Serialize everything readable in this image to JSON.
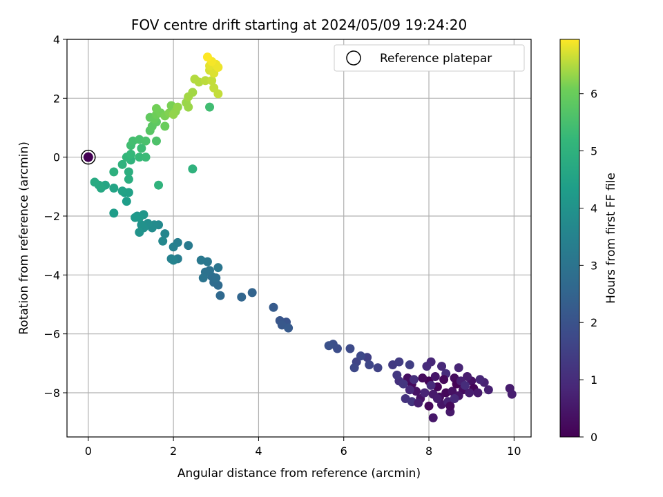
{
  "chart_data": {
    "type": "scatter",
    "title": "FOV centre drift starting at 2024/05/09 19:24:20",
    "xlabel": "Angular distance from reference (arcmin)",
    "ylabel": "Rotation from reference (arcmin)",
    "xlim": [
      -0.5,
      10.4
    ],
    "ylim": [
      -9.5,
      4.0
    ],
    "xticks": [
      0,
      2,
      4,
      6,
      8,
      10
    ],
    "yticks": [
      -8,
      -6,
      -4,
      -2,
      0,
      2,
      4
    ],
    "grid": true,
    "legend": {
      "position": "top-right",
      "entries": [
        "Reference platepar"
      ]
    },
    "colorbar": {
      "label": "Hours from first FF file",
      "range": [
        0,
        6.95
      ],
      "ticks": [
        0,
        1,
        2,
        3,
        4,
        5,
        6
      ],
      "colormap": "viridis"
    },
    "reference_point": {
      "x": 0,
      "y": 0
    },
    "points": [
      [
        8.0,
        -7.6,
        0.05
      ],
      [
        8.2,
        -7.8,
        0.1
      ],
      [
        8.4,
        -8.0,
        0.15
      ],
      [
        7.6,
        -7.7,
        0.2
      ],
      [
        8.6,
        -7.5,
        0.25
      ],
      [
        8.8,
        -7.9,
        0.3
      ],
      [
        9.0,
        -7.6,
        0.35
      ],
      [
        7.8,
        -8.2,
        0.4
      ],
      [
        8.3,
        -8.4,
        0.45
      ],
      [
        8.1,
        -8.85,
        0.5
      ],
      [
        8.5,
        -8.65,
        0.55
      ],
      [
        9.9,
        -7.85,
        0.6
      ],
      [
        9.95,
        -8.05,
        0.65
      ],
      [
        9.4,
        -7.9,
        0.7
      ],
      [
        9.3,
        -7.65,
        0.75
      ],
      [
        8.7,
        -7.15,
        0.8
      ],
      [
        8.05,
        -6.95,
        0.85
      ],
      [
        8.3,
        -7.1,
        0.9
      ],
      [
        7.95,
        -7.1,
        0.95
      ],
      [
        8.4,
        -7.35,
        1.0
      ],
      [
        7.5,
        -7.5,
        0.3
      ],
      [
        7.7,
        -7.95,
        0.4
      ],
      [
        7.3,
        -7.6,
        1.1
      ],
      [
        7.45,
        -8.2,
        1.15
      ],
      [
        7.6,
        -8.3,
        1.2
      ],
      [
        7.85,
        -7.5,
        0.2
      ],
      [
        8.15,
        -7.45,
        0.5
      ],
      [
        8.25,
        -8.15,
        0.25
      ],
      [
        8.55,
        -7.95,
        0.35
      ],
      [
        8.7,
        -8.1,
        0.45
      ],
      [
        8.9,
        -7.45,
        0.6
      ],
      [
        9.05,
        -7.85,
        0.1
      ],
      [
        9.15,
        -8.0,
        0.55
      ],
      [
        8.95,
        -8.0,
        0.65
      ],
      [
        8.45,
        -8.3,
        0.75
      ],
      [
        8.0,
        -8.45,
        0.15
      ],
      [
        7.9,
        -8.0,
        0.8
      ],
      [
        7.55,
        -7.9,
        0.9
      ],
      [
        7.4,
        -7.7,
        1.25
      ],
      [
        7.25,
        -7.4,
        1.3
      ],
      [
        7.15,
        -7.05,
        1.35
      ],
      [
        7.3,
        -6.95,
        1.4
      ],
      [
        7.55,
        -7.05,
        1.45
      ],
      [
        8.65,
        -7.7,
        0.05
      ],
      [
        8.35,
        -7.55,
        0.15
      ],
      [
        8.1,
        -8.05,
        0.55
      ],
      [
        8.75,
        -7.6,
        0.7
      ],
      [
        9.2,
        -7.55,
        0.85
      ],
      [
        8.05,
        -7.75,
        0.95
      ],
      [
        7.65,
        -7.55,
        1.05
      ],
      [
        8.5,
        -8.45,
        0.2
      ],
      [
        8.2,
        -8.2,
        0.6
      ],
      [
        7.75,
        -8.35,
        0.65
      ],
      [
        8.6,
        -8.2,
        0.9
      ],
      [
        8.85,
        -7.75,
        1.0
      ],
      [
        6.55,
        -6.8,
        1.5
      ],
      [
        6.8,
        -7.15,
        1.55
      ],
      [
        6.3,
        -6.95,
        1.6
      ],
      [
        6.6,
        -7.05,
        1.65
      ],
      [
        6.25,
        -7.15,
        1.7
      ],
      [
        6.4,
        -6.75,
        1.75
      ],
      [
        6.15,
        -6.5,
        1.8
      ],
      [
        5.85,
        -6.5,
        1.85
      ],
      [
        5.75,
        -6.35,
        1.9
      ],
      [
        5.65,
        -6.4,
        1.95
      ],
      [
        4.65,
        -5.6,
        2.05
      ],
      [
        4.5,
        -5.55,
        2.1
      ],
      [
        4.55,
        -5.7,
        2.15
      ],
      [
        4.7,
        -5.8,
        2.2
      ],
      [
        4.35,
        -5.1,
        2.25
      ],
      [
        3.85,
        -4.6,
        2.5
      ],
      [
        3.6,
        -4.75,
        2.55
      ],
      [
        3.1,
        -4.7,
        2.65
      ],
      [
        3.05,
        -4.35,
        2.7
      ],
      [
        2.95,
        -4.25,
        2.75
      ],
      [
        2.9,
        -4.05,
        2.8
      ],
      [
        3.0,
        -4.1,
        2.85
      ],
      [
        2.85,
        -3.85,
        2.9
      ],
      [
        2.75,
        -3.9,
        2.95
      ],
      [
        2.7,
        -4.1,
        3.0
      ],
      [
        3.05,
        -3.75,
        3.05
      ],
      [
        2.8,
        -3.55,
        3.1
      ],
      [
        2.65,
        -3.5,
        3.15
      ],
      [
        2.35,
        -3.0,
        3.2
      ],
      [
        2.1,
        -3.45,
        3.3
      ],
      [
        2.1,
        -2.9,
        3.35
      ],
      [
        2.0,
        -3.05,
        3.4
      ],
      [
        1.95,
        -3.45,
        3.45
      ],
      [
        2.0,
        -3.5,
        3.5
      ],
      [
        1.8,
        -2.6,
        3.6
      ],
      [
        1.75,
        -2.85,
        3.65
      ],
      [
        1.65,
        -2.3,
        3.7
      ],
      [
        1.55,
        -2.3,
        3.75
      ],
      [
        1.5,
        -2.4,
        3.8
      ],
      [
        1.4,
        -2.25,
        3.85
      ],
      [
        1.3,
        -2.4,
        3.9
      ],
      [
        1.25,
        -2.3,
        3.95
      ],
      [
        1.2,
        -2.55,
        4.0
      ],
      [
        1.15,
        -2.0,
        4.05
      ],
      [
        1.3,
        -1.95,
        4.1
      ],
      [
        1.2,
        -2.05,
        4.15
      ],
      [
        1.1,
        -2.05,
        4.2
      ],
      [
        0.6,
        -1.9,
        4.3
      ],
      [
        0.9,
        -1.5,
        4.35
      ],
      [
        0.85,
        -1.2,
        4.4
      ],
      [
        0.95,
        -1.2,
        4.45
      ],
      [
        0.8,
        -1.15,
        4.5
      ],
      [
        0.6,
        -1.05,
        4.55
      ],
      [
        0.4,
        -0.95,
        4.6
      ],
      [
        0.3,
        -1.05,
        4.65
      ],
      [
        0.25,
        -0.95,
        4.7
      ],
      [
        0.15,
        -0.85,
        4.75
      ],
      [
        2.45,
        -0.4,
        5.0
      ],
      [
        1.65,
        -0.95,
        5.05
      ],
      [
        0.95,
        -0.75,
        4.85
      ],
      [
        0.95,
        -0.5,
        4.9
      ],
      [
        0.6,
        -0.5,
        4.95
      ],
      [
        0.8,
        -0.25,
        5.0
      ],
      [
        1.0,
        -0.1,
        5.05
      ],
      [
        0.9,
        0.0,
        5.15
      ],
      [
        1.0,
        0.1,
        5.2
      ],
      [
        1.2,
        0.0,
        5.25
      ],
      [
        1.35,
        0.0,
        5.3
      ],
      [
        1.25,
        0.3,
        5.35
      ],
      [
        1.0,
        0.4,
        5.4
      ],
      [
        1.05,
        0.55,
        5.45
      ],
      [
        1.2,
        0.6,
        5.5
      ],
      [
        1.35,
        0.55,
        5.55
      ],
      [
        1.6,
        0.55,
        5.6
      ],
      [
        2.85,
        1.7,
        5.4
      ],
      [
        1.45,
        0.9,
        5.75
      ],
      [
        1.5,
        1.05,
        5.8
      ],
      [
        1.6,
        1.2,
        5.85
      ],
      [
        1.45,
        1.35,
        5.9
      ],
      [
        1.55,
        1.3,
        5.95
      ],
      [
        1.8,
        1.05,
        6.0
      ],
      [
        1.6,
        1.45,
        6.05
      ],
      [
        1.7,
        1.5,
        6.1
      ],
      [
        1.6,
        1.65,
        6.1
      ],
      [
        1.8,
        1.4,
        6.15
      ],
      [
        1.9,
        1.5,
        6.2
      ],
      [
        1.95,
        1.75,
        6.15
      ],
      [
        2.05,
        1.55,
        6.25
      ],
      [
        2.1,
        1.7,
        6.3
      ],
      [
        2.0,
        1.45,
        6.3
      ],
      [
        2.3,
        1.85,
        6.35
      ],
      [
        2.35,
        1.7,
        6.35
      ],
      [
        2.45,
        2.2,
        6.4
      ],
      [
        2.35,
        2.05,
        6.4
      ],
      [
        2.6,
        2.55,
        6.5
      ],
      [
        2.5,
        2.65,
        6.5
      ],
      [
        2.75,
        2.6,
        6.55
      ],
      [
        2.9,
        2.6,
        6.6
      ],
      [
        2.95,
        2.35,
        6.6
      ],
      [
        3.05,
        2.15,
        6.6
      ],
      [
        2.85,
        2.95,
        6.7
      ],
      [
        2.95,
        2.85,
        6.75
      ],
      [
        2.85,
        3.1,
        6.8
      ],
      [
        3.0,
        3.15,
        6.85
      ],
      [
        3.05,
        3.05,
        6.85
      ],
      [
        2.9,
        3.25,
        6.9
      ],
      [
        2.8,
        3.4,
        6.95
      ]
    ]
  }
}
